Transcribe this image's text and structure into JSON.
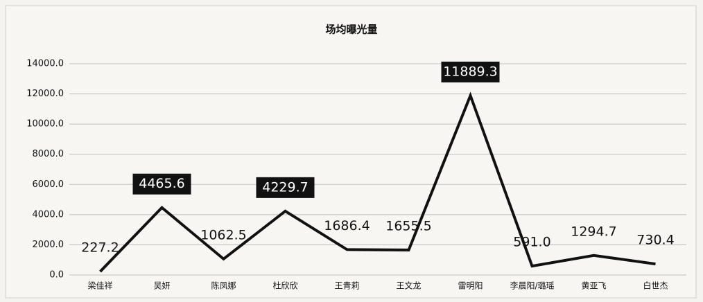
{
  "chart_data": {
    "type": "line",
    "title": "场均曝光量",
    "categories": [
      "梁佳祥",
      "吴妍",
      "陈凤娜",
      "杜欣欣",
      "王青莉",
      "王文龙",
      "雷明阳",
      "李晨阳/璐瑶",
      "黄亚飞",
      "白世杰"
    ],
    "series": [
      {
        "name": "场均曝光量",
        "color": "#111111",
        "values": [
          227.2,
          4465.6,
          1062.5,
          4229.7,
          1686.4,
          1655.5,
          11889.3,
          591.0,
          1294.7,
          730.4
        ],
        "value_labels": [
          "227.2",
          "4465.6",
          "1062.5",
          "4229.7",
          "1686.4",
          "1655.5",
          "11889.3",
          "591.0",
          "1294.7",
          "730.4"
        ],
        "value_label_boxes": [
          false,
          true,
          false,
          true,
          false,
          false,
          true,
          false,
          false,
          false
        ]
      }
    ],
    "ylim": [
      0,
      14000
    ],
    "yticks": [
      {
        "value": 0,
        "label": "0.0"
      },
      {
        "value": 2000,
        "label": "2000.0"
      },
      {
        "value": 4000,
        "label": "4000.0"
      },
      {
        "value": 6000,
        "label": "6000.0"
      },
      {
        "value": 8000,
        "label": "8000.0"
      },
      {
        "value": 10000,
        "label": "10000.0"
      },
      {
        "value": 12000,
        "label": "12000.0"
      },
      {
        "value": 14000,
        "label": "14000.0"
      }
    ],
    "grid": true
  }
}
